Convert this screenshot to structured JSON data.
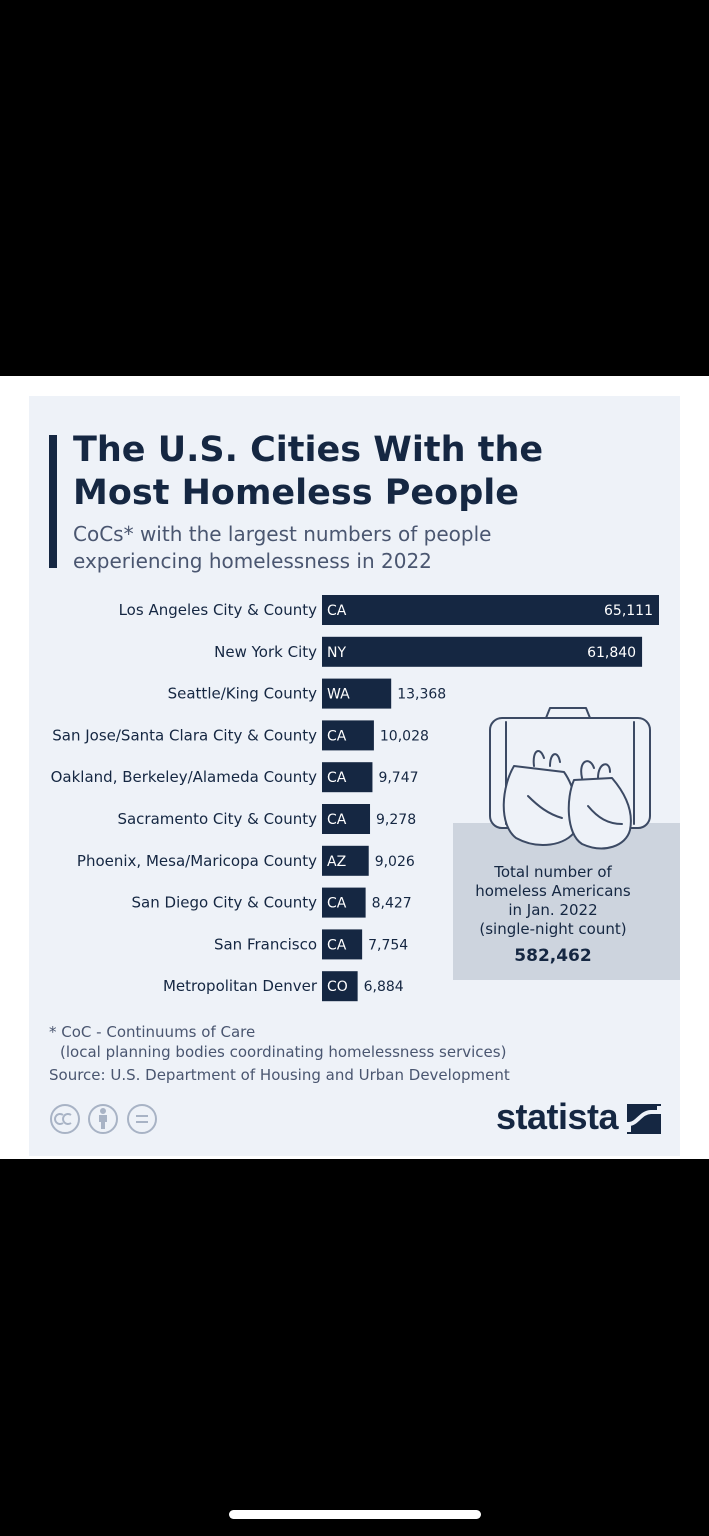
{
  "title": {
    "line1": "The U.S. Cities With the",
    "line2": "Most Homeless People"
  },
  "subtitle": {
    "line1": "CoCs* with the largest numbers of people",
    "line2": "experiencing homelessness in 2022"
  },
  "chart_data": {
    "type": "bar",
    "orientation": "horizontal",
    "categories": [
      "Los Angeles City & County",
      "New York City",
      "Seattle/King County",
      "San Jose/Santa Clara City & County",
      "Oakland, Berkeley/Alameda County",
      "Sacramento City & County",
      "Phoenix, Mesa/Maricopa County",
      "San Diego City & County",
      "San Francisco",
      "Metropolitan Denver"
    ],
    "states": [
      "CA",
      "NY",
      "WA",
      "CA",
      "CA",
      "CA",
      "AZ",
      "CA",
      "CA",
      "CO"
    ],
    "values": [
      65111,
      61840,
      13368,
      10028,
      9747,
      9278,
      9026,
      8427,
      7754,
      6884
    ],
    "value_labels": [
      "65,111",
      "61,840",
      "13,368",
      "10,028",
      "9,747",
      "9,278",
      "9,026",
      "8,427",
      "7,754",
      "6,884"
    ],
    "bar_color": "#152742",
    "grid": false,
    "legend": "none"
  },
  "callout": {
    "line1": "Total number of",
    "line2": "homeless Americans",
    "line3": "in Jan. 2022",
    "line4": "(single-night count)",
    "value": "582,462"
  },
  "footnote": {
    "line1": "* CoC - Continuums of Care",
    "line2": "(local planning bodies coordinating homelessness services)",
    "source": "Source: U.S. Department of Housing and Urban Development"
  },
  "license_icons": [
    "cc-icon",
    "attribution-icon",
    "no-derivatives-icon"
  ],
  "brand": {
    "name": "statista",
    "color": "#152742"
  }
}
